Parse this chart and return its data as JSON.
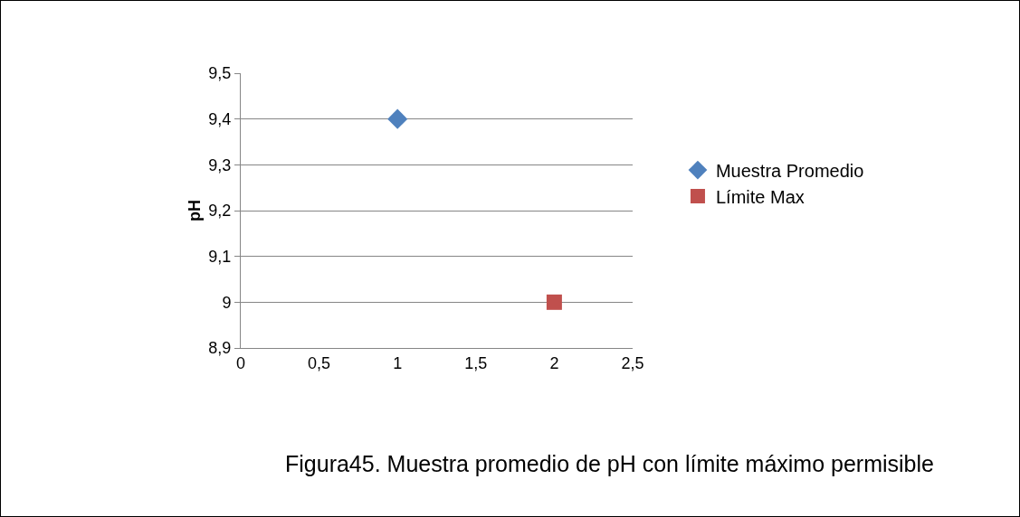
{
  "chart_data": {
    "type": "scatter",
    "ylabel": "pH",
    "annotations": [
      "Figura45. Muestra promedio de pH con límite máximo permisible"
    ],
    "series": [
      {
        "name": "Muestra Promedio",
        "color": "#4f81bd",
        "marker": "diamond",
        "x": [
          1
        ],
        "values": [
          9.4
        ]
      },
      {
        "name": "Límite Max",
        "color": "#c0504d",
        "marker": "square",
        "x": [
          2
        ],
        "values": [
          9
        ]
      }
    ],
    "xlim": [
      0,
      2.5
    ],
    "xticks": [
      0,
      {
        "value": 0.5,
        "label": "0,5"
      },
      1,
      {
        "value": 1.5,
        "label": "1,5"
      },
      2,
      {
        "value": 2.5,
        "label": "2,5"
      }
    ],
    "ylim": [
      8.9,
      9.5
    ],
    "yticks": [
      {
        "value": 8.9,
        "label": "8,9"
      },
      9,
      {
        "value": 9.1,
        "label": "9,1"
      },
      {
        "value": 9.2,
        "label": "9,2"
      },
      {
        "value": 9.3,
        "label": "9,3"
      },
      {
        "value": 9.4,
        "label": "9,4"
      },
      {
        "value": 9.5,
        "label": "9,5"
      }
    ],
    "grid": "y",
    "legend": "right"
  }
}
